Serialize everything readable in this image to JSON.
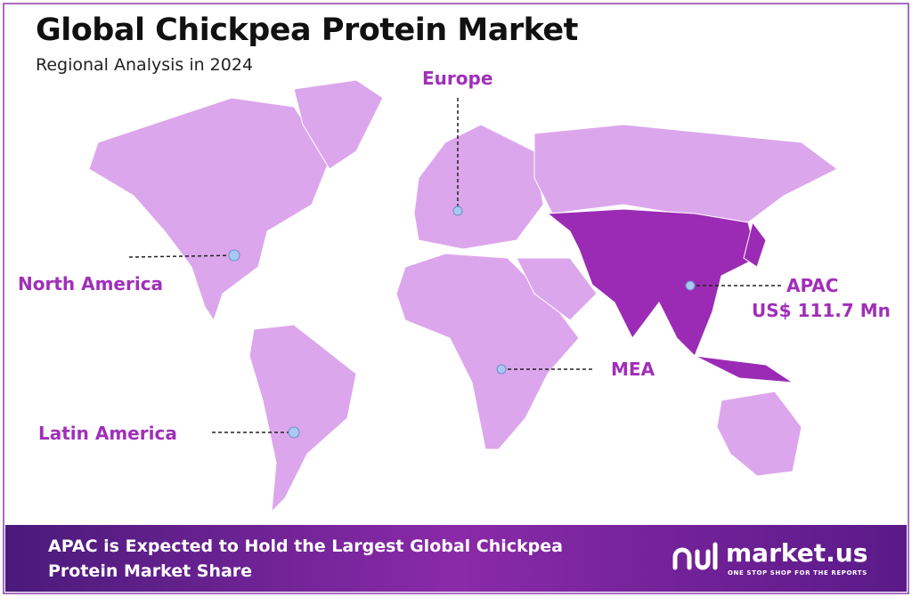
{
  "header": {
    "title": "Global Chickpea Protein Market",
    "subtitle": "Regional Analysis in 2024"
  },
  "regions": [
    {
      "name": "Europe"
    },
    {
      "name": "North America"
    },
    {
      "name": "Latin America"
    },
    {
      "name": "MEA"
    },
    {
      "name": "APAC",
      "value": "US$ 111.7 Mn"
    }
  ],
  "footer": {
    "text": "APAC is Expected to Hold the Largest Global Chickpea Protein Market Share",
    "brand": "market.us",
    "tagline": "ONE STOP SHOP FOR THE REPORTS"
  }
}
